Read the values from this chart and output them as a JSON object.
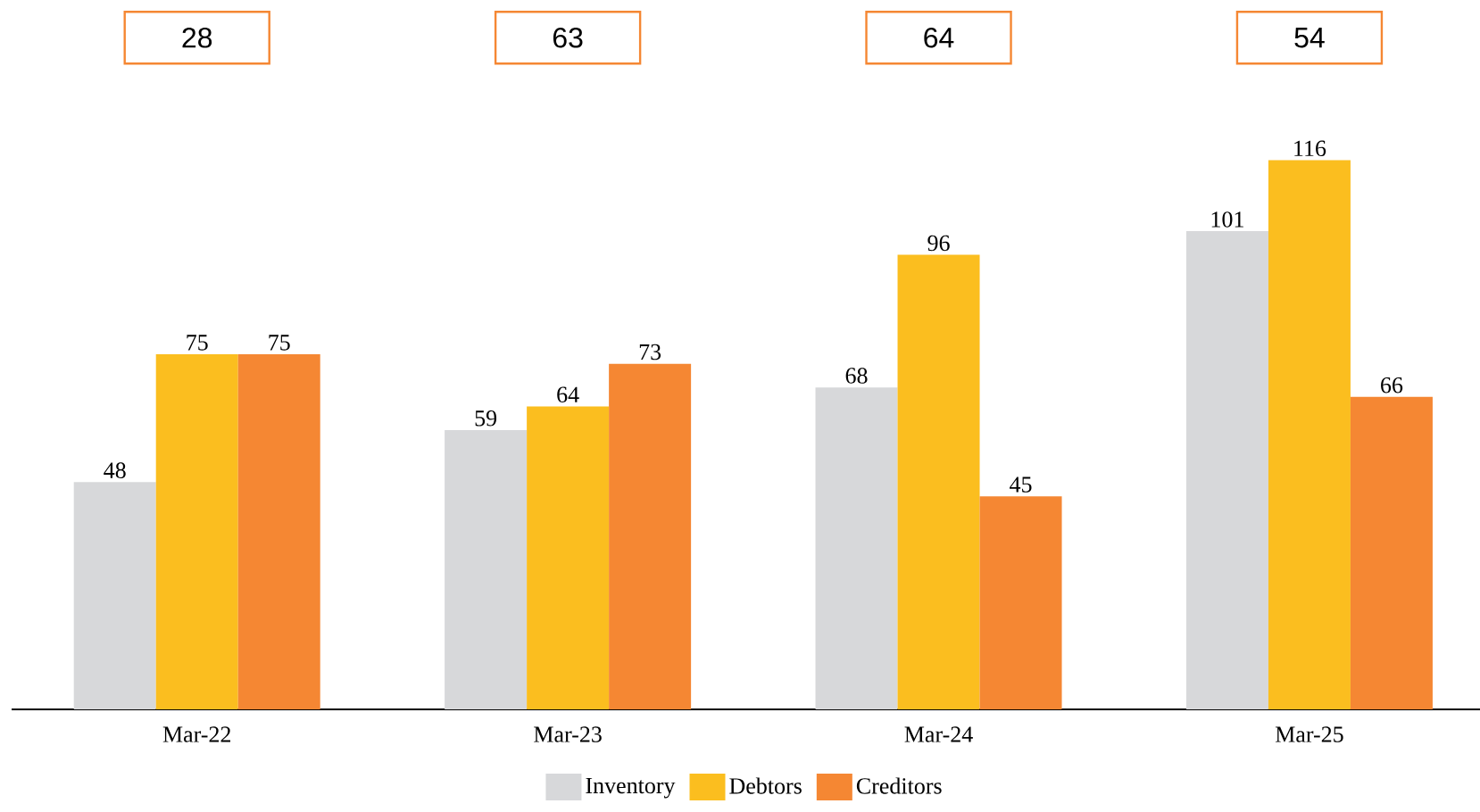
{
  "chart_data": {
    "type": "bar",
    "categories": [
      "Mar-22",
      "Mar-23",
      "Mar-24",
      "Mar-25"
    ],
    "series": [
      {
        "name": "Inventory",
        "color": "#d7d8da",
        "values": [
          48,
          59,
          68,
          101
        ]
      },
      {
        "name": "Debtors",
        "color": "#fbbe1f",
        "values": [
          75,
          64,
          96,
          116
        ]
      },
      {
        "name": "Creditors",
        "color": "#f58733",
        "values": [
          75,
          73,
          45,
          66
        ]
      }
    ],
    "annotations": [
      "28",
      "63",
      "64",
      "54"
    ],
    "data_labels": true,
    "legend": "bottom"
  }
}
